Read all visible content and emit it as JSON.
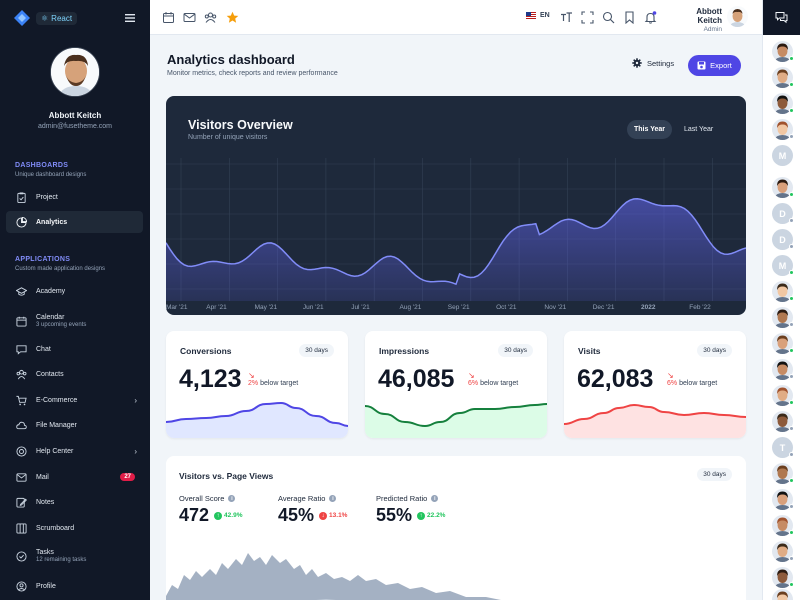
{
  "app": {
    "framework_badge": "React",
    "user": {
      "name": "Abbott Keitch",
      "email": "admin@fusetheme.com",
      "role": "Admin"
    }
  },
  "sidebar": {
    "dashboards": {
      "title": "DASHBOARDS",
      "subtitle": "Unique dashboard designs"
    },
    "applications": {
      "title": "APPLICATIONS",
      "subtitle": "Custom made application designs"
    },
    "items": [
      {
        "label": "Project",
        "icon": "clipboard-check-icon"
      },
      {
        "label": "Analytics",
        "icon": "chart-pie-icon",
        "active": true
      },
      {
        "label": "Academy",
        "icon": "academic-cap-icon"
      },
      {
        "label": "Calendar",
        "icon": "calendar-icon",
        "sub": "3 upcoming events"
      },
      {
        "label": "Chat",
        "icon": "chat-icon"
      },
      {
        "label": "Contacts",
        "icon": "users-icon"
      },
      {
        "label": "E-Commerce",
        "icon": "cart-icon",
        "chevron": true
      },
      {
        "label": "File Manager",
        "icon": "cloud-icon"
      },
      {
        "label": "Help Center",
        "icon": "support-icon",
        "chevron": true
      },
      {
        "label": "Mail",
        "icon": "mail-icon",
        "badge": "27"
      },
      {
        "label": "Notes",
        "icon": "pencil-icon"
      },
      {
        "label": "Scrumboard",
        "icon": "board-icon"
      },
      {
        "label": "Tasks",
        "icon": "check-circle-icon",
        "sub": "12 remaining tasks"
      },
      {
        "label": "Profile",
        "icon": "user-circle-icon"
      }
    ]
  },
  "topbar": {
    "language": "EN"
  },
  "header": {
    "title": "Analytics dashboard",
    "subtitle": "Monitor metrics, check reports and review performance",
    "settings_label": "Settings",
    "export_label": "Export"
  },
  "visitors": {
    "title": "Visitors Overview",
    "subtitle": "Number of unique visitors",
    "tabs": [
      "This Year",
      "Last Year"
    ],
    "x_labels": [
      "Mar '21",
      "Apr '21",
      "May '21",
      "Jun '21",
      "Jul '21",
      "Aug '21",
      "Sep '21",
      "Oct '21",
      "Nov '21",
      "Dec '21",
      "2022",
      "Feb '22"
    ]
  },
  "cards": [
    {
      "title": "Conversions",
      "period": "30 days",
      "value": "4,123",
      "pct": "2%",
      "trend_text": "below target",
      "color": "#4f46e5",
      "fill": "#e0e7ff"
    },
    {
      "title": "Impressions",
      "period": "30 days",
      "value": "46,085",
      "pct": "6%",
      "trend_text": "below target",
      "color": "#15803d",
      "fill": "#dcfce7"
    },
    {
      "title": "Visits",
      "period": "30 days",
      "value": "62,083",
      "pct": "6%",
      "trend_text": "below target",
      "color": "#ef4444",
      "fill": "#fee2e2"
    }
  ],
  "vpv": {
    "title": "Visitors vs. Page Views",
    "period": "30 days",
    "metrics": [
      {
        "label": "Overall Score",
        "value": "472",
        "change": "42.9%",
        "direction": "up",
        "color": "#22c55e"
      },
      {
        "label": "Average Ratio",
        "value": "45%",
        "change": "13.1%",
        "direction": "down",
        "color": "#ef4444"
      },
      {
        "label": "Predicted Ratio",
        "value": "55%",
        "change": "22.2%",
        "direction": "up",
        "color": "#22c55e"
      }
    ]
  },
  "right_panel": {
    "contacts": [
      {
        "type": "photo",
        "status": "#22c55e"
      },
      {
        "type": "photo",
        "status": "#22c55e"
      },
      {
        "type": "photo",
        "status": "#22c55e"
      },
      {
        "type": "photo",
        "status": "#94a3b8"
      },
      {
        "type": "letter",
        "letter": "M",
        "status": null
      },
      {
        "type": "photo",
        "status": "#22c55e"
      },
      {
        "type": "letter",
        "letter": "D",
        "status": "#94a3b8"
      },
      {
        "type": "letter",
        "letter": "D",
        "status": "#94a3b8"
      },
      {
        "type": "letter",
        "letter": "M",
        "status": "#22c55e"
      },
      {
        "type": "photo",
        "status": "#22c55e"
      },
      {
        "type": "photo",
        "status": "#94a3b8"
      },
      {
        "type": "photo",
        "status": "#22c55e"
      },
      {
        "type": "photo",
        "status": "#94a3b8"
      },
      {
        "type": "photo",
        "status": "#22c55e"
      },
      {
        "type": "photo",
        "status": "#94a3b8"
      },
      {
        "type": "letter",
        "letter": "T",
        "status": "#94a3b8"
      },
      {
        "type": "photo",
        "status": "#22c55e"
      },
      {
        "type": "photo",
        "status": "#94a3b8"
      },
      {
        "type": "photo",
        "status": "#22c55e"
      },
      {
        "type": "photo",
        "status": "#94a3b8"
      },
      {
        "type": "photo",
        "status": "#22c55e"
      },
      {
        "type": "photo",
        "status": "#94a3b8"
      },
      {
        "type": "photo",
        "status": "#22c55e"
      },
      {
        "type": "photo",
        "status": "#94a3b8"
      }
    ]
  },
  "colors": {
    "sidebar_bg": "#111827",
    "accent": "#4f46e5",
    "chart_line": "#818cf8"
  }
}
